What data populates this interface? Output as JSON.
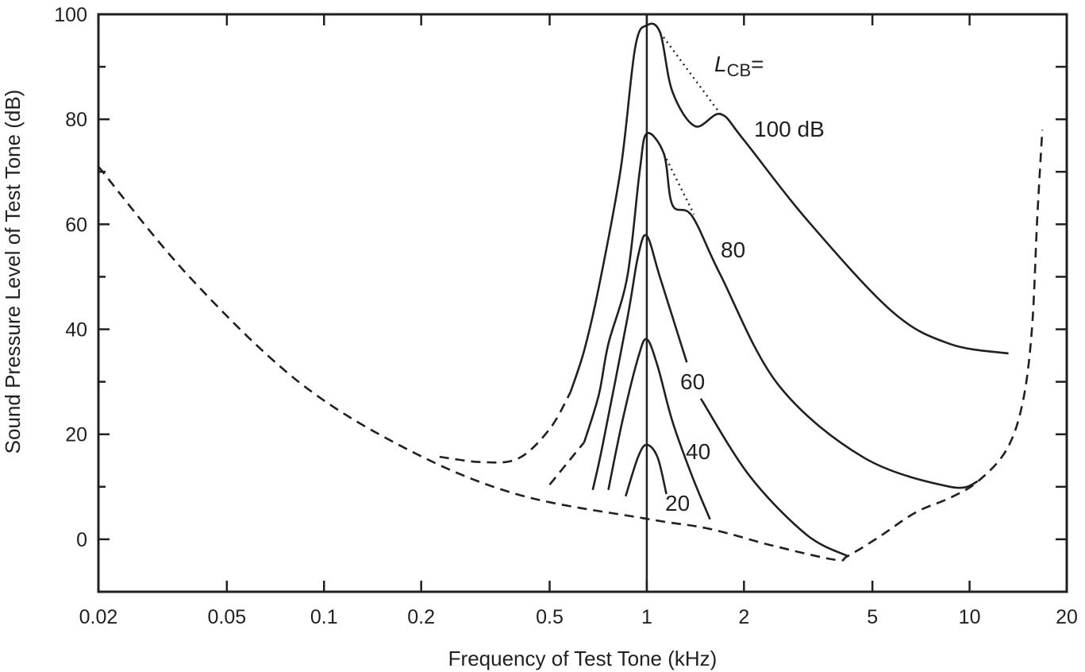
{
  "chart_data": {
    "type": "line",
    "title": "",
    "xlabel": "Frequency of Test Tone (kHz)",
    "ylabel": "Sound Pressure Level of Test Tone (dB)",
    "xscale": "log",
    "xlim": [
      0.02,
      20
    ],
    "ylim": [
      -10,
      100
    ],
    "grid": false,
    "x_ticks": [
      0.02,
      0.05,
      0.1,
      0.2,
      0.5,
      1,
      2,
      5,
      10,
      20
    ],
    "x_tick_labels": [
      "0.02",
      "0.05",
      "0.1",
      "0.2",
      "0.5",
      "1",
      "2",
      "5",
      "10",
      "20"
    ],
    "y_ticks": [
      0,
      20,
      40,
      60,
      80,
      100
    ],
    "y_tick_labels": [
      "0",
      "20",
      "40",
      "60",
      "80",
      "100"
    ],
    "y_minor_ticks": [
      -10,
      10,
      30,
      50,
      70,
      90
    ],
    "masker_center_khz": 1,
    "annotations": {
      "lcb_label_main": "L",
      "lcb_label_sub": "CB",
      "lcb_label_eq": "=",
      "level_100": "100 dB",
      "level_80": "80",
      "level_60": "60",
      "level_40": "40",
      "level_20": "20"
    },
    "color": "#231f20",
    "series": [
      {
        "id": "threshold-in-quiet",
        "segments": [
          {
            "style": "dashed",
            "points": [
              [
                0.02,
                71
              ],
              [
                0.038,
                50.2
              ],
              [
                0.083,
                30.1
              ],
              [
                0.183,
                17
              ],
              [
                0.4,
                8.5
              ],
              [
                1.0,
                3.9
              ],
              [
                1.56,
                2
              ],
              [
                2.45,
                -1.2
              ],
              [
                3.83,
                -3.9
              ],
              [
                4.19,
                -3.2
              ],
              [
                5.2,
                0.3
              ],
              [
                6.8,
                5.1
              ],
              [
                8.7,
                7.9
              ],
              [
                10.6,
                11
              ],
              [
                13.0,
                17
              ],
              [
                14.6,
                26
              ],
              [
                15.6,
                40
              ],
              [
                16.2,
                61
              ],
              [
                16.8,
                78
              ]
            ]
          }
        ]
      },
      {
        "id": "masking-100",
        "level": 100,
        "segments": [
          {
            "style": "dashed",
            "points": [
              [
                0.228,
                15.7
              ],
              [
                0.308,
                14.7
              ],
              [
                0.4,
                15.4
              ],
              [
                0.5,
                21
              ],
              [
                0.58,
                28
              ]
            ]
          },
          {
            "style": "solid",
            "points": [
              [
                0.58,
                28
              ],
              [
                0.64,
                36
              ],
              [
                0.71,
                48
              ],
              [
                0.83,
                70.5
              ],
              [
                0.92,
                93.6
              ],
              [
                1.0,
                97.9
              ],
              [
                1.1,
                96.5
              ],
              [
                1.2,
                85.3
              ],
              [
                1.41,
                78.7
              ],
              [
                1.69,
                81
              ],
              [
                1.99,
                76.2
              ],
              [
                3.12,
                61
              ],
              [
                5.75,
                43.4
              ],
              [
                8.7,
                37.2
              ],
              [
                13.2,
                35.4
              ]
            ]
          },
          {
            "style": "dotted",
            "points": [
              [
                1.1,
                96.5
              ],
              [
                1.71,
                80.6
              ]
            ]
          }
        ]
      },
      {
        "id": "masking-80",
        "level": 80,
        "segments": [
          {
            "style": "dashed",
            "points": [
              [
                0.5,
                10.4
              ],
              [
                0.64,
                18.5
              ]
            ]
          },
          {
            "style": "solid",
            "points": [
              [
                0.64,
                18.5
              ],
              [
                0.71,
                27.5
              ],
              [
                0.76,
                37.2
              ],
              [
                0.87,
                50
              ],
              [
                0.95,
                70
              ],
              [
                1.0,
                77.3
              ],
              [
                1.13,
                73.4
              ],
              [
                1.2,
                63.7
              ],
              [
                1.38,
                61.6
              ],
              [
                1.69,
                50.4
              ],
              [
                2.55,
                29.5
              ],
              [
                4.69,
                15.6
              ],
              [
                8.7,
                10
              ],
              [
                10.6,
                11
              ]
            ]
          },
          {
            "style": "dotted",
            "points": [
              [
                1.13,
                73.4
              ],
              [
                1.4,
                61.9
              ]
            ]
          }
        ]
      },
      {
        "id": "masking-60",
        "level": 60,
        "segments": [
          {
            "style": "solid",
            "points": [
              [
                0.68,
                9.4
              ],
              [
                0.73,
                18
              ],
              [
                0.87,
                42
              ],
              [
                0.94,
                54
              ],
              [
                1.0,
                57.8
              ],
              [
                1.1,
                49.8
              ],
              [
                1.33,
                33.7
              ]
            ]
          },
          {
            "style": "solid",
            "points": [
              [
                1.47,
                26.8
              ],
              [
                2.08,
                12.1
              ],
              [
                3.12,
                0.9
              ],
              [
                4.19,
                -3.2
              ]
            ]
          }
        ]
      },
      {
        "id": "masking-40",
        "level": 40,
        "segments": [
          {
            "style": "solid",
            "points": [
              [
                0.76,
                9.4
              ],
              [
                0.84,
                22.5
              ],
              [
                0.94,
                34.6
              ],
              [
                1.0,
                38.1
              ],
              [
                1.08,
                33
              ],
              [
                1.2,
                22.5
              ],
              [
                1.38,
                12.1
              ],
              [
                1.57,
                3.8
              ]
            ]
          }
        ]
      },
      {
        "id": "masking-20",
        "level": 20,
        "segments": [
          {
            "style": "solid",
            "points": [
              [
                0.86,
                8.2
              ],
              [
                0.94,
                15.7
              ],
              [
                1.0,
                18
              ],
              [
                1.08,
                15.6
              ],
              [
                1.15,
                8.6
              ]
            ]
          }
        ]
      }
    ]
  }
}
